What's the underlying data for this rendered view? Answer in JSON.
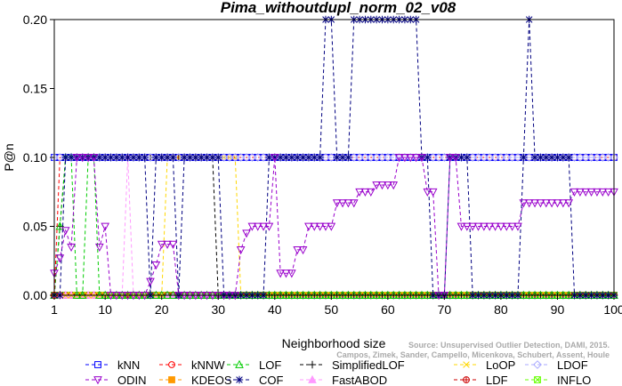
{
  "chart_data": {
    "type": "line",
    "title": "Pima_withoutdupl_norm_02_v08",
    "xlabel": "Neighborhood size",
    "ylabel": "P@n",
    "xlim": [
      1,
      100
    ],
    "ylim": [
      0,
      0.2
    ],
    "x_ticks": [
      1,
      10,
      20,
      30,
      40,
      50,
      60,
      70,
      80,
      90,
      100
    ],
    "y_ticks": [
      0.0,
      0.05,
      0.1,
      0.15,
      0.2
    ],
    "y_tick_labels": [
      "0.00",
      "0.05",
      "0.10",
      "0.15",
      "0.20"
    ],
    "grid": false,
    "legend_position": "bottom",
    "watermark": "Source: Unsupervised Outlier Detection, DAMI, 2015. Campos, Zimek, Sander, Campello, Micenkova, Schubert, Assent, Houle",
    "series": [
      {
        "name": "kNN",
        "color": "#0000ff",
        "marker": "square",
        "segments": [
          [
            1,
            0.1
          ],
          [
            100,
            0.1
          ]
        ]
      },
      {
        "name": "kNNW",
        "color": "#ff0000",
        "marker": "circle",
        "segments": [
          [
            1,
            0.0
          ],
          [
            2,
            0.1
          ],
          [
            100,
            0.1
          ]
        ]
      },
      {
        "name": "LOF",
        "color": "#00cc00",
        "marker": "triangle-up",
        "segments": [
          [
            1,
            0.0
          ],
          [
            3,
            0.1
          ],
          [
            4,
            0.1
          ],
          [
            5,
            0.0
          ],
          [
            6,
            0.0
          ],
          [
            7,
            0.1
          ],
          [
            8,
            0.1
          ],
          [
            9,
            0.0
          ],
          [
            100,
            0.0
          ]
        ]
      },
      {
        "name": "SimplifiedLOF",
        "color": "#000000",
        "marker": "plus",
        "segments": [
          [
            1,
            0.0
          ],
          [
            3,
            0.1
          ],
          [
            29,
            0.1
          ],
          [
            30,
            0.0
          ],
          [
            100,
            0.0
          ]
        ]
      },
      {
        "name": "LoOP",
        "color": "#ffd700",
        "marker": "x",
        "segments": [
          [
            1,
            0.0
          ],
          [
            20,
            0.0
          ],
          [
            21,
            0.1
          ],
          [
            33,
            0.1
          ],
          [
            34,
            0.0
          ],
          [
            100,
            0.0
          ]
        ]
      },
      {
        "name": "LDOF",
        "color": "#aaaaff",
        "marker": "diamond",
        "segments": [
          [
            1,
            0.1
          ],
          [
            100,
            0.1
          ]
        ]
      },
      {
        "name": "ODIN",
        "color": "#9900cc",
        "marker": "triangle-down",
        "segments": [
          [
            1,
            0.016
          ],
          [
            2,
            0.027
          ],
          [
            3,
            0.047
          ],
          [
            4,
            0.035
          ],
          [
            5,
            0.1
          ],
          [
            8,
            0.1
          ],
          [
            9,
            0.035
          ],
          [
            10,
            0.05
          ],
          [
            11,
            0.0
          ],
          [
            17,
            0.0
          ],
          [
            18,
            0.01
          ],
          [
            19,
            0.022
          ],
          [
            20,
            0.037
          ],
          [
            21,
            0.037
          ],
          [
            22,
            0.037
          ],
          [
            23,
            0.0
          ],
          [
            33,
            0.0
          ],
          [
            34,
            0.033
          ],
          [
            35,
            0.045
          ],
          [
            36,
            0.05
          ],
          [
            37,
            0.05
          ],
          [
            38,
            0.05
          ],
          [
            39,
            0.05
          ],
          [
            40,
            0.1
          ],
          [
            41,
            0.016
          ],
          [
            42,
            0.016
          ],
          [
            43,
            0.016
          ],
          [
            44,
            0.033
          ],
          [
            45,
            0.033
          ],
          [
            46,
            0.05
          ],
          [
            47,
            0.05
          ],
          [
            48,
            0.05
          ],
          [
            49,
            0.05
          ],
          [
            50,
            0.05
          ],
          [
            51,
            0.067
          ],
          [
            52,
            0.067
          ],
          [
            53,
            0.067
          ],
          [
            54,
            0.067
          ],
          [
            55,
            0.075
          ],
          [
            56,
            0.075
          ],
          [
            57,
            0.075
          ],
          [
            58,
            0.08
          ],
          [
            59,
            0.08
          ],
          [
            60,
            0.08
          ],
          [
            61,
            0.08
          ],
          [
            62,
            0.1
          ],
          [
            66,
            0.1
          ],
          [
            67,
            0.075
          ],
          [
            68,
            0.075
          ],
          [
            69,
            0.0
          ],
          [
            70,
            0.0
          ],
          [
            71,
            0.1
          ],
          [
            72,
            0.1
          ],
          [
            73,
            0.05
          ],
          [
            74,
            0.05
          ],
          [
            75,
            0.05
          ],
          [
            76,
            0.05
          ],
          [
            77,
            0.05
          ],
          [
            78,
            0.05
          ],
          [
            79,
            0.05
          ],
          [
            80,
            0.05
          ],
          [
            81,
            0.05
          ],
          [
            82,
            0.05
          ],
          [
            83,
            0.05
          ],
          [
            84,
            0.067
          ],
          [
            85,
            0.067
          ],
          [
            86,
            0.067
          ],
          [
            87,
            0.067
          ],
          [
            88,
            0.067
          ],
          [
            89,
            0.067
          ],
          [
            90,
            0.067
          ],
          [
            91,
            0.067
          ],
          [
            92,
            0.067
          ],
          [
            93,
            0.075
          ],
          [
            94,
            0.075
          ],
          [
            95,
            0.075
          ],
          [
            96,
            0.075
          ],
          [
            97,
            0.075
          ],
          [
            98,
            0.075
          ],
          [
            99,
            0.075
          ],
          [
            100,
            0.075
          ]
        ]
      },
      {
        "name": "KDEOS",
        "color": "#ff9900",
        "marker": "square-filled",
        "segments": [
          [
            1,
            0.0
          ],
          [
            100,
            0.0
          ]
        ]
      },
      {
        "name": "COF",
        "color": "#000080",
        "marker": "asterisk",
        "segments": [
          [
            1,
            0.0
          ],
          [
            2,
            0.0
          ],
          [
            3,
            0.1
          ],
          [
            17,
            0.1
          ],
          [
            18,
            0.0
          ],
          [
            19,
            0.1
          ],
          [
            22,
            0.1
          ],
          [
            23,
            0.0
          ],
          [
            24,
            0.1
          ],
          [
            30,
            0.1
          ],
          [
            31,
            0.0
          ],
          [
            38,
            0.0
          ],
          [
            39,
            0.1
          ],
          [
            48,
            0.1
          ],
          [
            49,
            0.2
          ],
          [
            50,
            0.2
          ],
          [
            51,
            0.1
          ],
          [
            53,
            0.1
          ],
          [
            54,
            0.2
          ],
          [
            65,
            0.2
          ],
          [
            66,
            0.1
          ],
          [
            67,
            0.1
          ],
          [
            68,
            0.0
          ],
          [
            70,
            0.0
          ],
          [
            71,
            0.1
          ],
          [
            74,
            0.1
          ],
          [
            75,
            0.0
          ],
          [
            83,
            0.0
          ],
          [
            84,
            0.1
          ],
          [
            85,
            0.2
          ],
          [
            86,
            0.1
          ],
          [
            92,
            0.1
          ],
          [
            93,
            0.0
          ],
          [
            100,
            0.0
          ]
        ]
      },
      {
        "name": "FastABOD",
        "color": "#ff99ff",
        "marker": "triangle-up-filled",
        "segments": [
          [
            1,
            0.0
          ],
          [
            13,
            0.0
          ],
          [
            14,
            0.1
          ],
          [
            15,
            0.0
          ],
          [
            100,
            0.0
          ]
        ]
      },
      {
        "name": "LDF",
        "color": "#cc0000",
        "marker": "circle-plus",
        "segments": [
          [
            1,
            0.0
          ],
          [
            100,
            0.0
          ]
        ]
      },
      {
        "name": "INFLO",
        "color": "#66ff00",
        "marker": "square-x",
        "segments": [
          [
            1,
            0.0
          ],
          [
            100,
            0.0
          ]
        ]
      }
    ]
  }
}
